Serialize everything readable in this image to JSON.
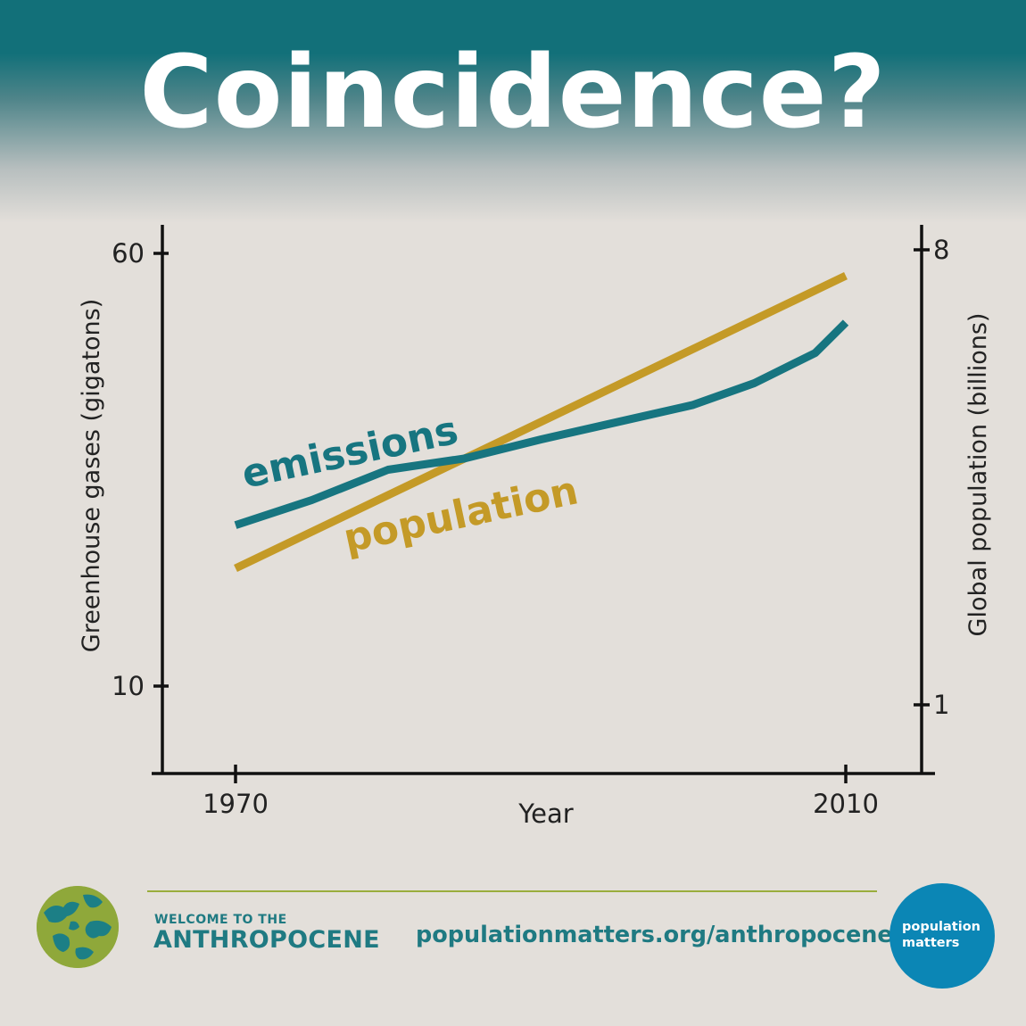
{
  "header": {
    "title": "Coincidence?"
  },
  "chart_data": {
    "type": "line",
    "xlabel": "Year",
    "ylabel_left": "Greenhouse gases (gigatons)",
    "ylabel_right": "Global population (billions)",
    "x_ticks": [
      1970,
      2010
    ],
    "y_left_ticks": [
      10,
      60
    ],
    "y_right_ticks": [
      1,
      8
    ],
    "grid": false,
    "series": [
      {
        "name": "emissions",
        "axis": "left",
        "color": "#177580",
        "x": [
          1970,
          1975,
          1980,
          1985,
          1990,
          1995,
          2000,
          2004,
          2008,
          2010
        ],
        "y": [
          28.6,
          31.5,
          35.0,
          36.3,
          38.5,
          40.5,
          42.5,
          45.0,
          48.5,
          52.0
        ]
      },
      {
        "name": "population",
        "axis": "right",
        "color": "#c49a27",
        "x": [
          1970,
          2010
        ],
        "y": [
          3.1,
          7.6
        ]
      }
    ]
  },
  "footer": {
    "welcome": "WELCOME TO THE",
    "anthropocene": "ANTHROPOCENE",
    "url": "populationmatters.org/anthropocene",
    "badge_line1": "population",
    "badge_line2": "matters"
  },
  "colors": {
    "teal": "#127079",
    "gold": "#c49a27",
    "green": "#9aad3c",
    "badge_blue": "#0b86b5",
    "background": "#e3dfda"
  }
}
